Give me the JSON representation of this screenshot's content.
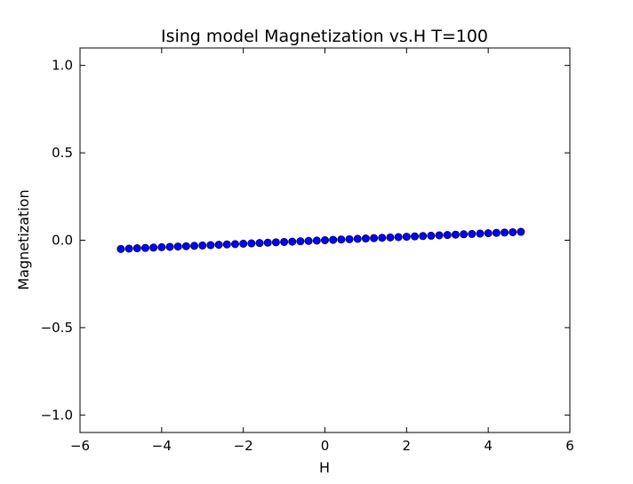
{
  "chart_data": {
    "type": "scatter",
    "title": "Ising model Magnetization vs.H T=100",
    "xlabel": "H",
    "ylabel": "Magnetization",
    "xlim": [
      -6,
      6
    ],
    "ylim": [
      -1.1,
      1.1
    ],
    "xticks": [
      -6,
      -4,
      -2,
      0,
      2,
      4,
      6
    ],
    "yticks": [
      -1.0,
      -0.5,
      0.0,
      0.5,
      1.0
    ],
    "xtick_labels": [
      "−6",
      "−4",
      "−2",
      "0",
      "2",
      "4",
      "6"
    ],
    "ytick_labels": [
      "−1.0",
      "−0.5",
      "0.0",
      "0.5",
      "1.0"
    ],
    "grid": false,
    "legend": "none",
    "marker_color": "#0000ff",
    "marker_edge_color": "#000000",
    "series": [
      {
        "x": [
          -5.0,
          -4.8,
          -4.6,
          -4.4,
          -4.2,
          -4.0,
          -3.8,
          -3.6,
          -3.4,
          -3.2,
          -3.0,
          -2.8,
          -2.6,
          -2.4,
          -2.2,
          -2.0,
          -1.8,
          -1.6,
          -1.4,
          -1.2,
          -1.0,
          -0.8,
          -0.6,
          -0.4,
          -0.2,
          0.0,
          0.2,
          0.4,
          0.6,
          0.8,
          1.0,
          1.2,
          1.4,
          1.6,
          1.8,
          2.0,
          2.2,
          2.4,
          2.6,
          2.8,
          3.0,
          3.2,
          3.4,
          3.6,
          3.8,
          4.0,
          4.2,
          4.4,
          4.6,
          4.8
        ],
        "y": [
          -0.05,
          -0.048,
          -0.046,
          -0.044,
          -0.042,
          -0.04,
          -0.038,
          -0.036,
          -0.034,
          -0.032,
          -0.03,
          -0.028,
          -0.026,
          -0.024,
          -0.022,
          -0.02,
          -0.018,
          -0.016,
          -0.014,
          -0.012,
          -0.01,
          -0.008,
          -0.006,
          -0.004,
          -0.002,
          0.0,
          0.002,
          0.004,
          0.006,
          0.008,
          0.01,
          0.012,
          0.014,
          0.016,
          0.018,
          0.02,
          0.022,
          0.024,
          0.026,
          0.028,
          0.03,
          0.032,
          0.034,
          0.036,
          0.038,
          0.04,
          0.042,
          0.044,
          0.046,
          0.048
        ]
      }
    ]
  }
}
